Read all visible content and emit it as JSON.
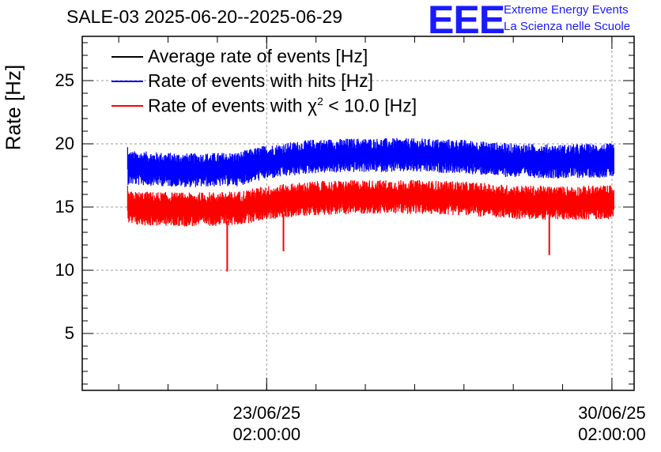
{
  "header": {
    "title": "SALE-03 2025-06-20--2025-06-29",
    "logo": "EEE",
    "logo_line1": "Extreme Energy Events",
    "logo_line2": "La Scienza nelle Scuole"
  },
  "colors": {
    "average": "#000000",
    "hits": "#0000ff",
    "chi2": "#ff0000",
    "logo": "#1a1aff"
  },
  "chart_data": {
    "type": "line",
    "title": "SALE-03 2025-06-20--2025-06-29",
    "ylabel": "Rate [Hz]",
    "xlabel": "",
    "x_unit": "days since 2025-06-20 00:00",
    "xlim": [
      -0.66,
      10.53
    ],
    "ylim": [
      0.5,
      28.5
    ],
    "y_ticks": [
      5,
      10,
      15,
      20,
      25
    ],
    "x_ticks": [
      {
        "x": 3.08,
        "date": "23/06/25",
        "time": "02:00:00"
      },
      {
        "x": 10.08,
        "date": "30/06/25",
        "time": "02:00:00"
      }
    ],
    "grid": true,
    "legend_position": "top-left",
    "legend": [
      {
        "name": "Average rate of events [Hz]",
        "color": "#000000"
      },
      {
        "name": "Rate of events with hits [Hz]",
        "color": "#0000ff"
      },
      {
        "name_prefix": "Rate of events with ",
        "name_symbol": "χ",
        "name_sup": "2",
        "name_suffix": " < 10.0 [Hz]",
        "color": "#ff0000"
      }
    ],
    "series": [
      {
        "name": "Rate of events with hits [Hz]",
        "color": "#0000ff",
        "x_start": 0.26,
        "x_end": 10.12,
        "baseline": [
          [
            0.26,
            18.1
          ],
          [
            1.5,
            17.9
          ],
          [
            2.5,
            18.0
          ],
          [
            3.0,
            18.5
          ],
          [
            4.0,
            19.0
          ],
          [
            5.0,
            19.1
          ],
          [
            6.0,
            19.1
          ],
          [
            7.0,
            19.0
          ],
          [
            8.0,
            18.7
          ],
          [
            9.0,
            18.6
          ],
          [
            10.12,
            18.7
          ]
        ],
        "noise_amplitude": 1.0,
        "min": 16.5,
        "max": 21.0,
        "dips": []
      },
      {
        "name": "Rate of events with χ2 < 10.0 [Hz]",
        "color": "#ff0000",
        "x_start": 0.26,
        "x_end": 10.12,
        "baseline": [
          [
            0.26,
            14.9
          ],
          [
            1.5,
            14.8
          ],
          [
            2.5,
            14.9
          ],
          [
            3.0,
            15.3
          ],
          [
            4.0,
            15.7
          ],
          [
            5.0,
            15.8
          ],
          [
            6.0,
            15.8
          ],
          [
            7.0,
            15.7
          ],
          [
            8.0,
            15.4
          ],
          [
            9.0,
            15.3
          ],
          [
            10.12,
            15.4
          ]
        ],
        "noise_amplitude": 1.0,
        "min": 12.9,
        "max": 17.3,
        "dips": [
          {
            "x": 2.28,
            "value": 9.9
          },
          {
            "x": 3.42,
            "value": 11.5
          },
          {
            "x": 8.81,
            "value": 11.2
          }
        ]
      }
    ]
  }
}
